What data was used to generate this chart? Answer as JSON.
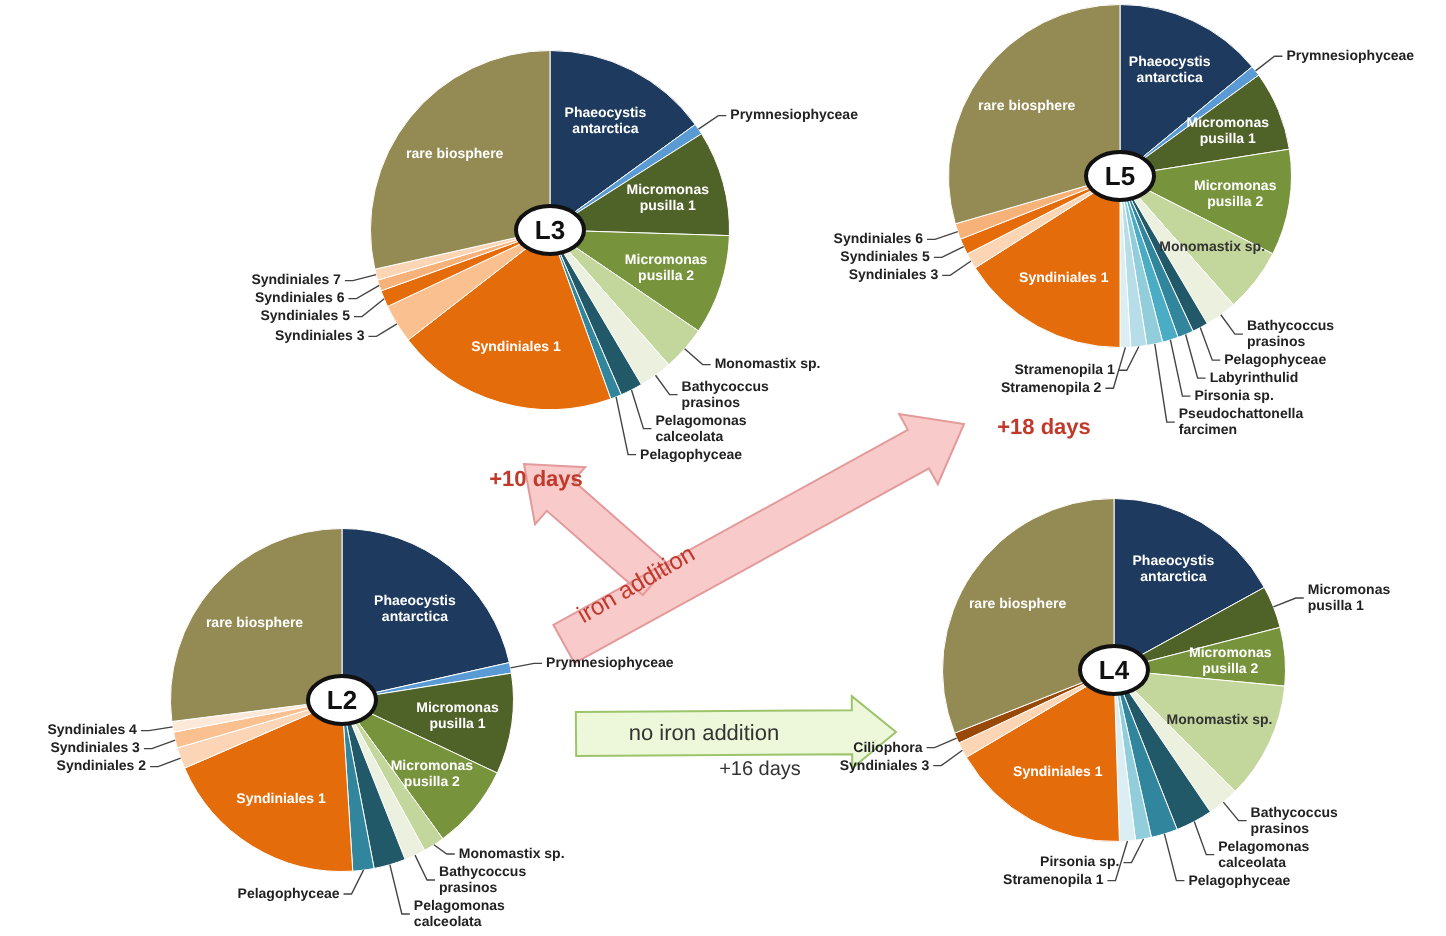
{
  "chart_data": [
    {
      "type": "pie",
      "title": "L3",
      "categories": [
        "Phaeocystis antarctica",
        "Prymnesiophyceae",
        "Micromonas pusilla 1",
        "Micromonas pusilla 2",
        "Monomastix sp.",
        "Bathycoccus prasinos",
        "Pelagomonas calceolata",
        "Pelagophyceae",
        "Syndiniales 1",
        "Syndiniales 3",
        "Syndiniales 5",
        "Syndiniales 6",
        "Syndiniales 7",
        "rare biosphere"
      ],
      "values": [
        15,
        1,
        9.5,
        9,
        4,
        3,
        2,
        1,
        20,
        3.5,
        1.5,
        1,
        1,
        28.5
      ],
      "colors": [
        "#1f3a5f",
        "#5b9bd5",
        "#4f6228",
        "#77933c",
        "#c3d69b",
        "#ebf1de",
        "#215968",
        "#31859c",
        "#e46c0a",
        "#fac090",
        "#e46c0a",
        "#f7b27a",
        "#fcd5b4",
        "#948a54"
      ],
      "annotations": [
        "+10 days"
      ]
    },
    {
      "type": "pie",
      "title": "L5",
      "categories": [
        "Phaeocystis antarctica",
        "Prymnesiophyceae",
        "Micromonas pusilla 1",
        "Micromonas pusilla 2",
        "Monomastix sp.",
        "Bathycoccus prasinos",
        "Pelagophyceae",
        "Labyrinthulid",
        "Pirsonia sp.",
        "Pseudochattonella farcimen",
        "Stramenopila 1",
        "Stramenopila 2",
        "Syndiniales 1",
        "Syndiniales 3",
        "Syndiniales 5",
        "Syndiniales 6",
        "rare biosphere"
      ],
      "values": [
        14,
        1,
        7.5,
        10,
        6,
        3,
        1.5,
        1.5,
        1.5,
        1.5,
        1.5,
        1,
        16,
        1.5,
        1.5,
        1.5,
        29.5
      ],
      "colors": [
        "#1f3a5f",
        "#5b9bd5",
        "#4f6228",
        "#77933c",
        "#c3d69b",
        "#ebf1de",
        "#215968",
        "#31859c",
        "#4bacc6",
        "#92cddc",
        "#b7dee8",
        "#daeef3",
        "#e46c0a",
        "#fcd5b4",
        "#e46c0a",
        "#f7b27a",
        "#948a54"
      ],
      "annotations": [
        "+18 days"
      ]
    },
    {
      "type": "pie",
      "title": "L2",
      "categories": [
        "Phaeocystis antarctica",
        "Prymnesiophyceae",
        "Micromonas pusilla 1",
        "Micromonas pusilla 2",
        "Monomastix sp.",
        "Bathycoccus prasinos",
        "Pelagomonas calceolata",
        "Pelagophyceae",
        "Syndiniales 1",
        "Syndiniales 2",
        "Syndiniales 3",
        "Syndiniales 4",
        "rare biosphere"
      ],
      "values": [
        21.5,
        1,
        9.5,
        8,
        2,
        2,
        3,
        2,
        19.5,
        2,
        1.5,
        1,
        27
      ],
      "colors": [
        "#1f3a5f",
        "#5b9bd5",
        "#4f6228",
        "#77933c",
        "#c3d69b",
        "#ebf1de",
        "#215968",
        "#31859c",
        "#e46c0a",
        "#fbd5b5",
        "#fac090",
        "#fde9d9",
        "#948a54"
      ],
      "annotations": [
        "iron addition",
        "no iron addition",
        "+16 days"
      ]
    },
    {
      "type": "pie",
      "title": "L4",
      "categories": [
        "Phaeocystis antarctica",
        "Micromonas pusilla 1",
        "Micromonas pusilla 2",
        "Monomastix sp.",
        "Bathycoccus prasinos",
        "Pelagomonas calceolata",
        "Pelagophyceae",
        "Pirsonia sp.",
        "Stramenopila 1",
        "Syndiniales 1",
        "Syndiniales 3",
        "Ciliophora",
        "rare biosphere"
      ],
      "values": [
        17,
        4,
        5.5,
        11,
        3,
        3.5,
        2.5,
        1.5,
        1.5,
        17,
        1.5,
        1,
        31
      ],
      "colors": [
        "#1f3a5f",
        "#4f6228",
        "#77933c",
        "#c3d69b",
        "#ebf1de",
        "#215968",
        "#31859c",
        "#92cddc",
        "#daeef3",
        "#e46c0a",
        "#fcd5b4",
        "#984807",
        "#948a54"
      ]
    }
  ]
}
